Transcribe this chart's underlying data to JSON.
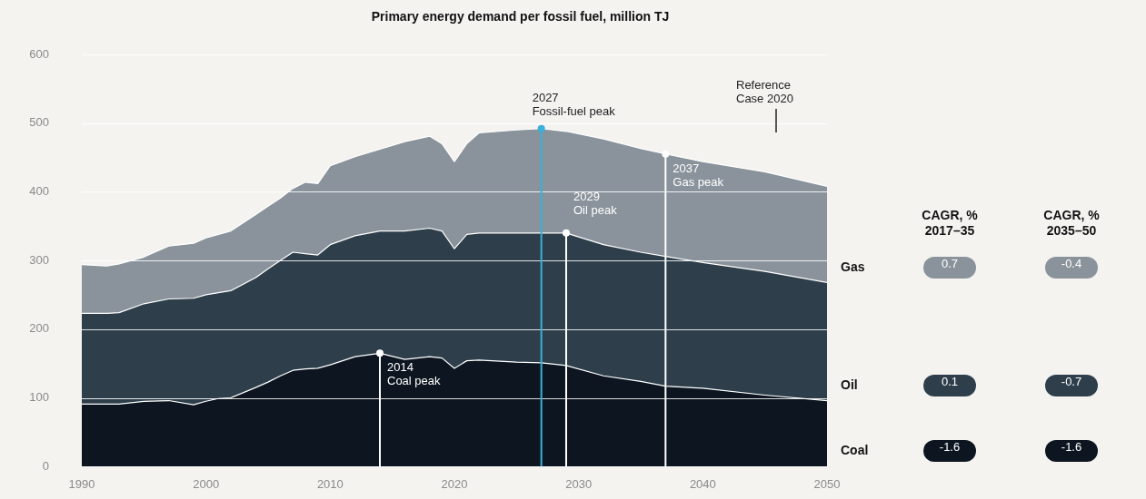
{
  "chart_data": [
    {
      "type": "area",
      "title": "Primary energy demand per fossil fuel, million TJ",
      "stacked": true,
      "x": [
        1990,
        1992,
        1993,
        1995,
        1997,
        1999,
        2000,
        2001,
        2002,
        2004,
        2005,
        2006,
        2007,
        2008,
        2009,
        2010,
        2012,
        2014,
        2016,
        2018,
        2019,
        2020,
        2021,
        2022,
        2025,
        2027,
        2029,
        2032,
        2035,
        2037,
        2040,
        2045,
        2050
      ],
      "series": [
        {
          "color": "#0d1620",
          "values": [
            91,
            91,
            91,
            95,
            96,
            90,
            95,
            99,
            100,
            115,
            123,
            132,
            140,
            142,
            143,
            148,
            160,
            165,
            156,
            160,
            158,
            143,
            154,
            155,
            152,
            151,
            147,
            132,
            124,
            117,
            114,
            104,
            96
          ]
        },
        {
          "color": "#2e3f4b",
          "values": [
            132,
            132,
            133,
            142,
            148,
            155,
            155,
            154,
            156,
            160,
            165,
            168,
            172,
            168,
            165,
            175,
            176,
            178,
            187,
            187,
            185,
            174,
            184,
            185,
            188,
            189,
            193,
            191,
            188,
            189,
            183,
            180,
            172
          ]
        },
        {
          "color": "#8a939b",
          "values": [
            71,
            69,
            71,
            68,
            77,
            80,
            83,
            85,
            87,
            92,
            91,
            91,
            93,
            104,
            104,
            115,
            115,
            119,
            130,
            134,
            127,
            127,
            132,
            146,
            150,
            152,
            148,
            154,
            151,
            149,
            147,
            145,
            140
          ]
        }
      ],
      "xlim": [
        1990,
        2050
      ],
      "xticks": [
        1990,
        2000,
        2010,
        2020,
        2030,
        2040,
        2050
      ],
      "ylim": [
        0,
        600
      ],
      "yticks": [
        0,
        100,
        200,
        300,
        400,
        500,
        600
      ],
      "grid": "y",
      "ref_lines": [
        {
          "axis": "x",
          "value": 2014,
          "label": "2014 Coal peak",
          "color": "#ffffff"
        },
        {
          "axis": "x",
          "value": 2027,
          "label": "2027 Fossil-fuel peak",
          "color": "#3bb0d8"
        },
        {
          "axis": "x",
          "value": 2029,
          "label": "2029 Oil peak",
          "color": "#ffffff"
        },
        {
          "axis": "x",
          "value": 2037,
          "label": "2037 Gas peak",
          "color": "#ffffff"
        }
      ],
      "annotations": [
        "Reference Case 2020"
      ]
    },
    {
      "type": "other",
      "categories": [
        "Gas",
        "Oil",
        "Coal"
      ],
      "data_labels": true,
      "series": [
        {
          "name": "CAGR, % 2017–35",
          "values": [
            0.7,
            0.1,
            -1.6
          ],
          "colors": [
            "#8a939b",
            "#2e3f4b",
            "#0d1620"
          ]
        },
        {
          "name": "CAGR, % 2035–50",
          "values": [
            -0.4,
            -0.7,
            -1.6
          ],
          "colors": [
            "#8a939b",
            "#2e3f4b",
            "#0d1620"
          ]
        }
      ]
    }
  ]
}
